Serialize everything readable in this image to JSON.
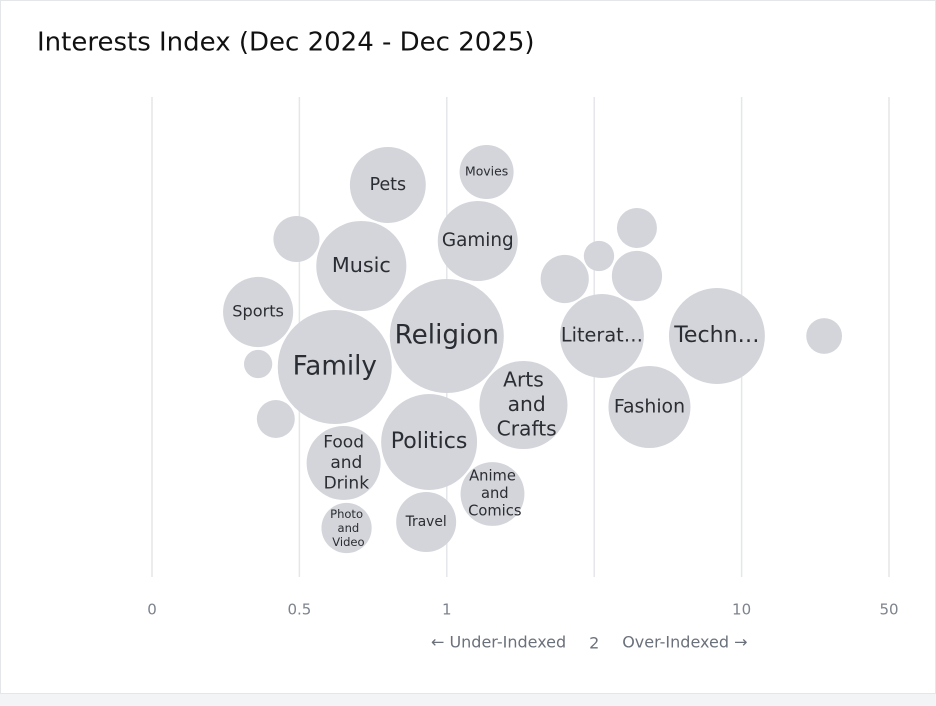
{
  "chart_data": {
    "type": "bubble",
    "title": "Interests Index (Dec 2024 - Dec 2025)",
    "xlabel_left": "← Under-Indexed",
    "xlabel_right": "Over-Indexed →",
    "xticks": [
      0,
      0.5,
      1,
      2,
      10,
      50
    ],
    "xlim": [
      0,
      50
    ],
    "grid": true,
    "color": "#d3d5da",
    "categories": [
      "Gaming",
      "Music",
      "Sports",
      "Food and Drink",
      "Religion",
      "Fashion",
      null,
      null,
      "Photo and Video",
      "Arts and Crafts",
      null,
      "Techn…",
      null,
      null,
      "Politics",
      "Literat…",
      "Family",
      "Movies",
      "Travel",
      null,
      null,
      null,
      "Anime and Comics",
      "Pets"
    ],
    "x": [
      1.21,
      0.71,
      0.36,
      0.65,
      1.0,
      5.0,
      2.26,
      0.49,
      0.66,
      1.52,
      4.32,
      8.66,
      32.4,
      0.42,
      0.94,
      2.42,
      0.62,
      1.27,
      0.93,
      1.8,
      4.32,
      0.36,
      1.31,
      0.8
    ],
    "sizes": [
      160,
      203,
      123,
      137,
      325,
      168,
      23,
      53,
      63,
      194,
      63,
      230,
      32,
      36,
      230,
      176,
      325,
      73,
      90,
      58,
      40,
      20,
      102,
      144
    ]
  }
}
